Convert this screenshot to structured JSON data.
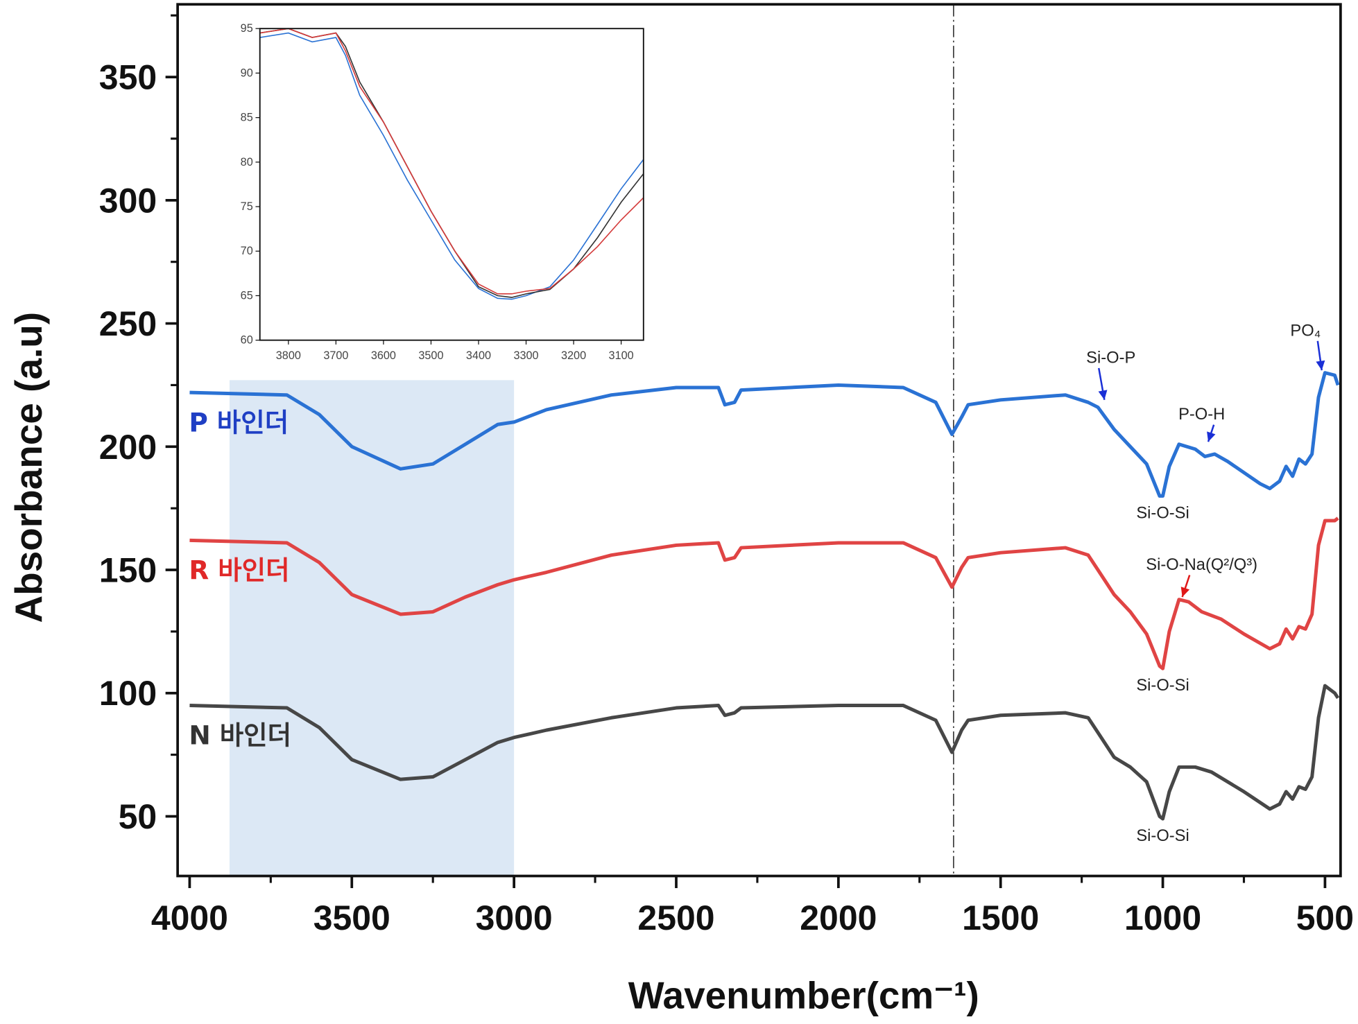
{
  "chart_data": {
    "type": "line",
    "xlabel": "Wavenumber(cm⁻¹)",
    "ylabel": "Absorbance (a.u)",
    "xlim": [
      4037,
      452
    ],
    "ylim": [
      25.8,
      379.5
    ],
    "x_reversed": true,
    "grid": false,
    "xticks": [
      4000,
      3500,
      3000,
      2500,
      2000,
      1500,
      1000,
      500
    ],
    "yticks": [
      50,
      100,
      150,
      200,
      250,
      300,
      350
    ],
    "shaded_region": {
      "x": [
        3877,
        3000
      ],
      "y_top": 227,
      "color": "#dce8f5"
    },
    "reference_line_x": 1645,
    "series": [
      {
        "name": "P 바인더",
        "color": "#2a72d4",
        "label_color": "#1f3fc4",
        "x": [
          4000,
          3700,
          3600,
          3500,
          3350,
          3250,
          3150,
          3050,
          3000,
          2900,
          2700,
          2500,
          2370,
          2350,
          2320,
          2300,
          2000,
          1800,
          1700,
          1650,
          1620,
          1600,
          1500,
          1300,
          1230,
          1200,
          1150,
          1100,
          1050,
          1010,
          1000,
          980,
          950,
          900,
          870,
          840,
          800,
          700,
          670,
          640,
          620,
          600,
          580,
          560,
          540,
          520,
          500,
          470,
          460
        ],
        "y": [
          222,
          221,
          213,
          200,
          191,
          193,
          201,
          209,
          210,
          215,
          221,
          224,
          224,
          217,
          218,
          223,
          225,
          224,
          218,
          205,
          212,
          217,
          219,
          221,
          218,
          216,
          207,
          200,
          193,
          180,
          180,
          192,
          201,
          199,
          196,
          197,
          194,
          185,
          183,
          186,
          192,
          188,
          195,
          193,
          197,
          220,
          230,
          229,
          225
        ]
      },
      {
        "name": "R 바인더",
        "color": "#e04444",
        "label_color": "#e02828",
        "x": [
          4000,
          3700,
          3600,
          3500,
          3350,
          3250,
          3150,
          3050,
          3000,
          2900,
          2700,
          2500,
          2370,
          2350,
          2320,
          2300,
          2000,
          1800,
          1700,
          1650,
          1620,
          1600,
          1500,
          1300,
          1230,
          1200,
          1150,
          1100,
          1050,
          1010,
          1000,
          980,
          950,
          920,
          880,
          820,
          750,
          670,
          640,
          620,
          600,
          580,
          560,
          540,
          520,
          500,
          470,
          460
        ],
        "y": [
          162,
          161,
          153,
          140,
          132,
          133,
          139,
          144,
          146,
          149,
          156,
          160,
          161,
          154,
          155,
          159,
          161,
          161,
          155,
          143,
          151,
          155,
          157,
          159,
          156,
          150,
          140,
          133,
          124,
          111,
          110,
          125,
          138,
          137,
          133,
          130,
          124,
          118,
          120,
          126,
          122,
          127,
          126,
          132,
          160,
          170,
          170,
          171
        ]
      },
      {
        "name": "N 바인더",
        "color": "#474747",
        "label_color": "#333333",
        "x": [
          4000,
          3700,
          3600,
          3500,
          3350,
          3250,
          3150,
          3050,
          3000,
          2900,
          2700,
          2500,
          2370,
          2350,
          2320,
          2300,
          2000,
          1800,
          1700,
          1650,
          1620,
          1600,
          1500,
          1300,
          1230,
          1200,
          1150,
          1100,
          1050,
          1010,
          1000,
          980,
          950,
          900,
          850,
          750,
          670,
          640,
          620,
          600,
          580,
          560,
          540,
          520,
          500,
          470,
          460
        ],
        "y": [
          95,
          94,
          86,
          73,
          65,
          66,
          73,
          80,
          82,
          85,
          90,
          94,
          95,
          91,
          92,
          94,
          95,
          95,
          89,
          76,
          85,
          89,
          91,
          92,
          90,
          84,
          74,
          70,
          64,
          50,
          49,
          60,
          70,
          70,
          68,
          60,
          53,
          55,
          60,
          57,
          62,
          61,
          66,
          90,
          103,
          100,
          98
        ]
      }
    ],
    "annotations": [
      {
        "text": "Si-O-P",
        "x": 1160,
        "y": 234,
        "arrow_color": "#1a2fd6",
        "arrow_to": [
          1180,
          219
        ]
      },
      {
        "text": "PO₄",
        "x": 560,
        "y": 245,
        "arrow_color": "#1a2fd6",
        "arrow_to": [
          510,
          231
        ]
      },
      {
        "text": "P-O-H",
        "x": 880,
        "y": 211,
        "arrow_color": "#1a2fd6",
        "arrow_to": [
          860,
          202
        ]
      },
      {
        "text": "Si-O-Si",
        "x": 1000,
        "y": 171
      },
      {
        "text": "Si-O-Na(Q²/Q³)",
        "x": 880,
        "y": 150,
        "arrow_color": "#e01818",
        "arrow_to": [
          940,
          139
        ]
      },
      {
        "text": "Si-O-Si",
        "x": 1000,
        "y": 101
      },
      {
        "text": "Si-O-Si",
        "x": 1000,
        "y": 40
      }
    ],
    "inset": {
      "xlim": [
        3860,
        3053
      ],
      "ylim": [
        60,
        95
      ],
      "xticks": [
        3800,
        3700,
        3600,
        3500,
        3400,
        3300,
        3200,
        3100
      ],
      "yticks": [
        60,
        65,
        70,
        75,
        80,
        85,
        90,
        95
      ],
      "series": [
        {
          "color": "#2a72d4",
          "x": [
            3860,
            3800,
            3750,
            3700,
            3680,
            3650,
            3600,
            3550,
            3500,
            3450,
            3400,
            3360,
            3330,
            3300,
            3250,
            3200,
            3150,
            3100,
            3053
          ],
          "y": [
            94,
            94.5,
            93.5,
            94,
            92,
            87.5,
            83,
            78,
            73.5,
            69,
            65.8,
            64.7,
            64.6,
            65,
            66,
            69,
            73,
            77,
            80.3
          ]
        },
        {
          "color": "#333333",
          "x": [
            3860,
            3800,
            3750,
            3700,
            3680,
            3650,
            3600,
            3550,
            3500,
            3450,
            3400,
            3360,
            3330,
            3300,
            3250,
            3200,
            3150,
            3100,
            3053
          ],
          "y": [
            94.5,
            95,
            94,
            94.5,
            93,
            89,
            84.5,
            79.5,
            74.5,
            70,
            66,
            65,
            64.8,
            65.2,
            65.7,
            68,
            71.5,
            75.5,
            78.7
          ]
        },
        {
          "color": "#d43a3a",
          "x": [
            3860,
            3800,
            3750,
            3700,
            3680,
            3650,
            3600,
            3550,
            3500,
            3450,
            3400,
            3360,
            3330,
            3300,
            3250,
            3200,
            3150,
            3100,
            3053
          ],
          "y": [
            94.5,
            95,
            94,
            94.5,
            92.5,
            88.5,
            84.5,
            79.5,
            74.5,
            70,
            66.3,
            65.2,
            65.2,
            65.5,
            65.8,
            68,
            70.5,
            73.5,
            76
          ]
        }
      ]
    }
  }
}
